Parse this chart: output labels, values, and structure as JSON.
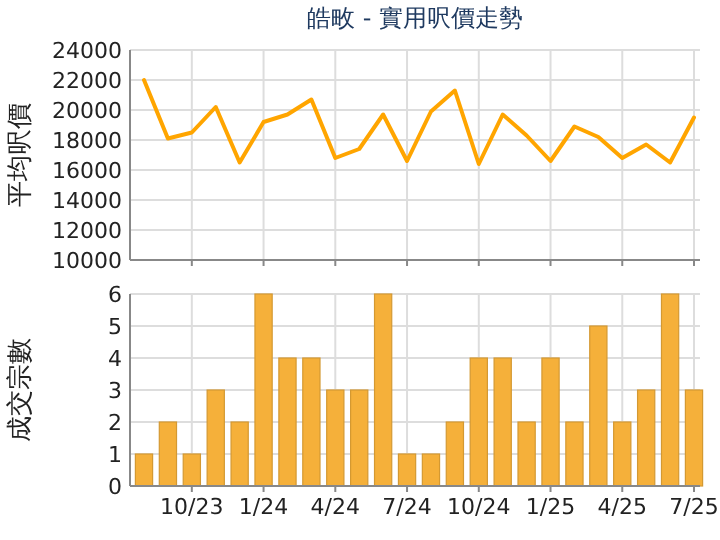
{
  "chart_data": [
    {
      "type": "line",
      "title": "皓畋 - 實用呎價走勢",
      "ylabel": "平均呎價",
      "categories": [
        null,
        null,
        null,
        null,
        null,
        null,
        null,
        null,
        null,
        null,
        null,
        null,
        null,
        null,
        null,
        null,
        null,
        null,
        null,
        null,
        null,
        null,
        null,
        null
      ],
      "series": [
        {
          "color": "#ffa500",
          "values": [
            22000,
            18100,
            18500,
            20200,
            16500,
            19200,
            19700,
            20700,
            16800,
            17400,
            19700,
            16600,
            19900,
            21300,
            16400,
            19700,
            18300,
            16600,
            18900,
            18200,
            16800,
            17700,
            16500,
            19500
          ]
        }
      ],
      "ylim": [
        10000,
        24000
      ],
      "yticks": [
        10000,
        12000,
        14000,
        16000,
        18000,
        20000,
        22000,
        24000
      ],
      "grid": true,
      "tick_labels": "y"
    },
    {
      "type": "bar",
      "ylabel": "成交宗數",
      "categories": [
        null,
        null,
        "10/23",
        null,
        null,
        "1/24",
        null,
        null,
        "4/24",
        null,
        null,
        "7/24",
        null,
        null,
        "10/24",
        null,
        null,
        "1/25",
        null,
        null,
        "4/25",
        null,
        null,
        "7/25"
      ],
      "series": [
        {
          "color": "#f5b03a",
          "values": [
            1,
            2,
            1,
            3,
            2,
            6,
            4,
            4,
            3,
            3,
            6,
            1,
            1,
            2,
            4,
            4,
            2,
            4,
            2,
            5,
            2,
            3,
            6,
            3
          ]
        }
      ],
      "ylim": [
        0,
        6
      ],
      "yticks": [
        0,
        1,
        2,
        3,
        4,
        5,
        6
      ],
      "grid": true
    }
  ]
}
